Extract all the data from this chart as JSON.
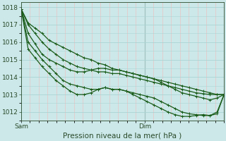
{
  "xlabel": "Pression niveau de la mer( hPa )",
  "ylim": [
    1011.5,
    1018.3
  ],
  "xlim": [
    0,
    46
  ],
  "yticks": [
    1012,
    1013,
    1014,
    1015,
    1016,
    1017,
    1018
  ],
  "xtick_positions": [
    0,
    28
  ],
  "xtick_labels": [
    "Sam",
    "Dim"
  ],
  "bg_color": "#cce8e8",
  "grid_major_color": "#aad4d4",
  "grid_minor_color": "#f0b8b8",
  "line_color": "#1a5c1a",
  "vline_x": 28,
  "vline_color": "#777777",
  "lines": [
    [
      1017.9,
      1017.1,
      1016.8,
      1016.5,
      1016.1,
      1015.9,
      1015.7,
      1015.5,
      1015.3,
      1015.1,
      1015.0,
      1014.8,
      1014.7,
      1014.5,
      1014.4,
      1014.3,
      1014.2,
      1014.1,
      1014.0,
      1013.9,
      1013.8,
      1013.7,
      1013.6,
      1013.5,
      1013.4,
      1013.3,
      1013.2,
      1013.1,
      1013.0,
      1013.0
    ],
    [
      1017.9,
      1017.0,
      1016.5,
      1016.0,
      1015.6,
      1015.3,
      1015.0,
      1014.8,
      1014.6,
      1014.5,
      1014.4,
      1014.3,
      1014.3,
      1014.2,
      1014.2,
      1014.1,
      1014.0,
      1013.9,
      1013.8,
      1013.7,
      1013.6,
      1013.5,
      1013.4,
      1013.3,
      1013.2,
      1013.1,
      1013.05,
      1013.0,
      1013.0,
      1013.0
    ],
    [
      1017.9,
      1016.5,
      1015.9,
      1015.3,
      1015.0,
      1014.8,
      1014.6,
      1014.4,
      1014.3,
      1014.3,
      1014.4,
      1014.5,
      1014.5,
      1014.4,
      1014.4,
      1014.3,
      1014.2,
      1014.1,
      1014.0,
      1013.9,
      1013.7,
      1013.5,
      1013.3,
      1013.1,
      1013.0,
      1012.9,
      1012.8,
      1012.7,
      1012.8,
      1013.0
    ],
    [
      1017.9,
      1016.0,
      1015.5,
      1015.0,
      1014.6,
      1014.2,
      1013.8,
      1013.6,
      1013.5,
      1013.4,
      1013.3,
      1013.3,
      1013.4,
      1013.3,
      1013.3,
      1013.2,
      1013.1,
      1013.0,
      1012.9,
      1012.8,
      1012.6,
      1012.4,
      1012.2,
      1012.0,
      1011.9,
      1011.85,
      1011.8,
      1011.8,
      1011.9,
      1013.0
    ],
    [
      1017.9,
      1015.6,
      1015.1,
      1014.6,
      1014.2,
      1013.8,
      1013.5,
      1013.2,
      1013.0,
      1013.0,
      1013.1,
      1013.3,
      1013.4,
      1013.3,
      1013.3,
      1013.2,
      1013.0,
      1012.8,
      1012.6,
      1012.4,
      1012.2,
      1012.0,
      1011.85,
      1011.75,
      1011.75,
      1011.8,
      1011.85,
      1011.8,
      1012.0,
      1013.0
    ]
  ],
  "marker": "+",
  "marker_size": 3,
  "linewidth": 0.9,
  "tick_fontsize": 6.5,
  "xlabel_fontsize": 7.5
}
